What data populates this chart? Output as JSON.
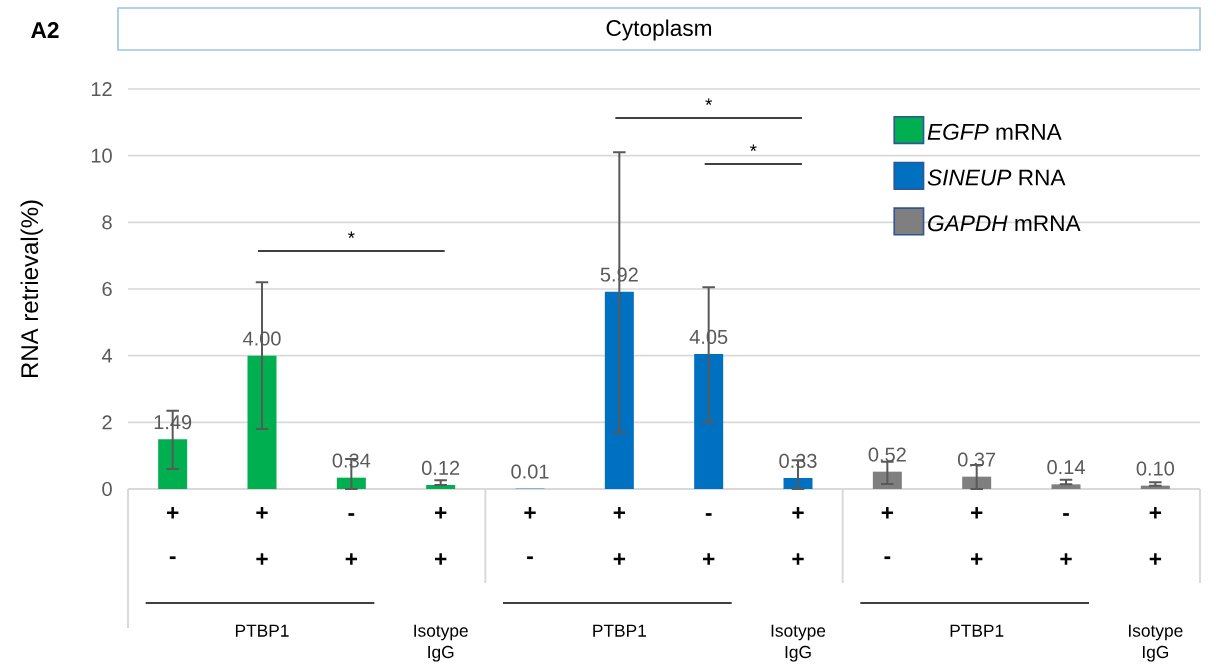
{
  "chart_data": {
    "type": "bar",
    "title": "Cytoplasm",
    "ylabel": "RNA retrieval(%)",
    "categories": [
      "+",
      "+",
      "-",
      "+",
      "+",
      "+",
      "-",
      "+",
      "+",
      "+",
      "-",
      "+"
    ],
    "series": [
      {
        "name": "*EGFP* mRNA",
        "color": "#00b050",
        "values": [
          1.49,
          4.0,
          0.34,
          0.12,
          null,
          null,
          null,
          null,
          null,
          null,
          null,
          null
        ],
        "errors": [
          [
            0.6,
            2.35
          ],
          [
            1.8,
            6.2
          ],
          [
            0,
            0.9
          ],
          [
            0.12,
            0.26
          ],
          null,
          null,
          null,
          null,
          null,
          null,
          null,
          null
        ],
        "value_labels": [
          "1.49",
          "4.00",
          "0.34",
          "0.12",
          null,
          null,
          null,
          null,
          null,
          null,
          null,
          null
        ]
      },
      {
        "name": "*SINEUP* RNA",
        "color": "#0070c0",
        "values": [
          null,
          null,
          null,
          null,
          0.01,
          5.92,
          4.05,
          0.33,
          null,
          null,
          null,
          null
        ],
        "errors": [
          null,
          null,
          null,
          null,
          null,
          [
            1.7,
            10.1
          ],
          [
            2.0,
            6.05
          ],
          [
            0,
            0.86
          ],
          null,
          null,
          null,
          null
        ],
        "value_labels": [
          null,
          null,
          null,
          null,
          "0.01",
          "5.92",
          "4.05",
          "0.33",
          null,
          null,
          null,
          null
        ]
      },
      {
        "name": "*GAPDH* mRNA",
        "color": "#7f7f7f",
        "values": [
          null,
          null,
          null,
          null,
          null,
          null,
          null,
          null,
          0.52,
          0.37,
          0.14,
          0.1
        ],
        "errors": [
          null,
          null,
          null,
          null,
          null,
          null,
          null,
          null,
          [
            0.15,
            0.82
          ],
          [
            0,
            0.72
          ],
          [
            0.14,
            0.28
          ],
          [
            0.1,
            0.2
          ]
        ],
        "value_labels": [
          null,
          null,
          null,
          null,
          null,
          null,
          null,
          null,
          "0.52",
          "0.37",
          "0.14",
          "0.10"
        ]
      }
    ],
    "ylim": [
      0,
      12
    ],
    "yticks": [
      0,
      2,
      4,
      6,
      8,
      10,
      12
    ],
    "grid": "y",
    "legend": "top right",
    "annotations": [
      "A2",
      "-",
      "+",
      "+",
      "+",
      "-",
      "+",
      "+",
      "+",
      "-",
      "+",
      "+",
      "+",
      "PTBP1",
      "Isotype IgG",
      "PTBP1",
      "Isotype IgG",
      "PTBP1",
      "Isotype IgG",
      "*",
      "*",
      "*"
    ]
  }
}
